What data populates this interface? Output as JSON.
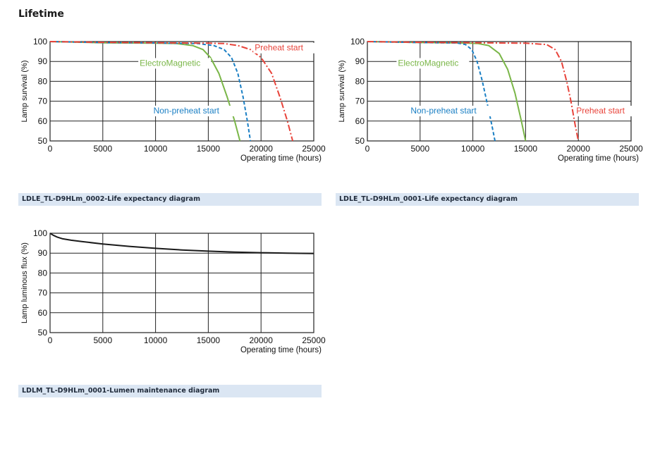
{
  "section_title": "Lifetime",
  "captions": [
    "LDLE_TL-D9HLm_0002-Life expectancy diagram",
    "LDLE_TL-D9HLm_0001-Life expectancy diagram",
    "LDLM_TL-D9HLm_0001-Lumen maintenance diagram"
  ],
  "colors": {
    "electromagnetic": "#7ab648",
    "preheat": "#e8433a",
    "non_preheat": "#1a7fc4",
    "lumen": "#1a1a1a",
    "caption_bg": "#dbe6f3"
  },
  "chart_data": [
    {
      "type": "line",
      "ylabel": "Lamp survival  (%)",
      "xlabel": "Operating time (hours)",
      "xlim": [
        0,
        25000
      ],
      "ylim": [
        50,
        100
      ],
      "xticks": [
        "0",
        "5000",
        "10000",
        "15000",
        "20000",
        "25000"
      ],
      "yticks": [
        "50",
        "60",
        "70",
        "80",
        "90",
        "100"
      ],
      "grid": true,
      "series": [
        {
          "name": "ElectroMagnetic",
          "color": "#7ab648",
          "dash": "solid",
          "x": [
            0,
            5000,
            10000,
            12000,
            13500,
            14500,
            15200,
            16000,
            16800,
            17500,
            18000
          ],
          "y": [
            100,
            99.4,
            99.2,
            99,
            98,
            96,
            92,
            84,
            72,
            60,
            50
          ]
        },
        {
          "name": "Non-preheat start",
          "color": "#1a7fc4",
          "dash": "dashed",
          "x": [
            0,
            5000,
            10000,
            14000,
            15500,
            16500,
            17200,
            17800,
            18300,
            18700,
            19000
          ],
          "y": [
            100,
            99.5,
            99.3,
            99,
            98,
            96,
            92,
            84,
            72,
            60,
            50
          ]
        },
        {
          "name": "Preheat start",
          "color": "#e8433a",
          "dash": "dashdot",
          "x": [
            0,
            5000,
            10000,
            15000,
            16500,
            17800,
            19000,
            20000,
            21000,
            21800,
            22500,
            23000
          ],
          "y": [
            100,
            99.6,
            99.4,
            99.2,
            99,
            98,
            96,
            92,
            84,
            72,
            60,
            50
          ]
        }
      ],
      "labels": [
        {
          "series": "Preheat start",
          "x": 19400,
          "y": 95.5
        },
        {
          "series": "ElectroMagnetic",
          "x": 8500,
          "y": 87.8
        },
        {
          "series": "Non-preheat start",
          "x": 9800,
          "y": 63.8
        }
      ]
    },
    {
      "type": "line",
      "ylabel": "Lamp survival  (%)",
      "xlabel": "Operating time (hours)",
      "xlim": [
        0,
        25000
      ],
      "ylim": [
        50,
        100
      ],
      "xticks": [
        "0",
        "5000",
        "10000",
        "15000",
        "20000",
        "25000"
      ],
      "yticks": [
        "50",
        "60",
        "70",
        "80",
        "90",
        "100"
      ],
      "grid": true,
      "series": [
        {
          "name": "ElectroMagnetic",
          "color": "#7ab648",
          "dash": "solid",
          "x": [
            0,
            5000,
            9000,
            10500,
            11500,
            12500,
            13300,
            14000,
            14600,
            15000
          ],
          "y": [
            100,
            99.5,
            99.3,
            99,
            98,
            94,
            86,
            74,
            60,
            50
          ]
        },
        {
          "name": "Non-preheat start",
          "color": "#1a7fc4",
          "dash": "dashed",
          "x": [
            0,
            5000,
            8500,
            9300,
            9900,
            10400,
            10900,
            11400,
            11800,
            12100
          ],
          "y": [
            100,
            99.5,
            99.3,
            98.5,
            96,
            90,
            80,
            68,
            58,
            50
          ]
        },
        {
          "name": "Preheat start",
          "color": "#e8433a",
          "dash": "dashdot",
          "x": [
            0,
            5000,
            10000,
            15000,
            17000,
            17800,
            18400,
            18900,
            19300,
            19700,
            20000
          ],
          "y": [
            100,
            99.6,
            99.4,
            99.2,
            98.5,
            96,
            90,
            80,
            70,
            58,
            50
          ]
        }
      ],
      "labels": [
        {
          "series": "ElectroMagnetic",
          "x": 2900,
          "y": 87.8
        },
        {
          "series": "Non-preheat start",
          "x": 4100,
          "y": 63.8
        },
        {
          "series": "Preheat start",
          "x": 19800,
          "y": 63.8
        }
      ]
    },
    {
      "type": "line",
      "ylabel": "Lamp luminous flux (%)",
      "xlabel": "Operating time (hours)",
      "xlim": [
        0,
        25000
      ],
      "ylim": [
        50,
        100
      ],
      "xticks": [
        "0",
        "5000",
        "10000",
        "15000",
        "20000",
        "25000"
      ],
      "yticks": [
        "50",
        "60",
        "70",
        "80",
        "90",
        "100"
      ],
      "grid": true,
      "series": [
        {
          "color": "#1a1a1a",
          "dash": "solid",
          "x": [
            0,
            300,
            700,
            1200,
            2000,
            3000,
            5000,
            7500,
            10000,
            12500,
            15000,
            17500,
            20000,
            22500,
            25000
          ],
          "y": [
            100,
            99,
            98,
            97.2,
            96.5,
            95.8,
            94.6,
            93.4,
            92.4,
            91.6,
            91,
            90.5,
            90.2,
            90,
            89.8
          ]
        }
      ]
    }
  ]
}
